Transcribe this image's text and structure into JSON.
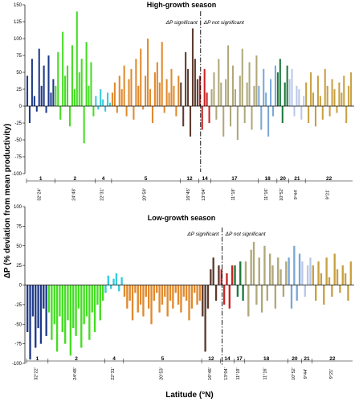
{
  "chart_data": [
    {
      "type": "bar",
      "title": "High-growth season",
      "ylim": [
        -100,
        150
      ],
      "yticks": [
        -100,
        -75,
        -50,
        -25,
        0,
        25,
        50,
        75,
        100,
        125,
        150
      ],
      "annotations": [
        "ΔP significant",
        "ΔP not significant"
      ],
      "groups": [
        "1",
        "2",
        "4",
        "5",
        "12",
        "14",
        "17",
        "18",
        "20",
        "21",
        "22"
      ],
      "latitudes": [
        "32°24'",
        "24°48'",
        "22°31'",
        "20°59'",
        "16°45'",
        "13°04'",
        "11°18'",
        "11°16'",
        "10°52'",
        "9°44'",
        "9°21'"
      ],
      "series": [
        {
          "color": "#1f3a8a",
          "values": [
            45,
            -25,
            70,
            15,
            -8,
            85,
            30,
            60,
            -10,
            75,
            20,
            40
          ]
        },
        {
          "color": "#44dd22",
          "values": [
            30,
            80,
            -20,
            110,
            45,
            60,
            -30,
            90,
            25,
            140,
            50,
            70,
            -55,
            95,
            30,
            65,
            -15
          ]
        },
        {
          "color": "#33ccdd",
          "values": [
            15,
            -5,
            25,
            10,
            -8,
            20,
            5
          ]
        },
        {
          "color": "#e08a2e",
          "values": [
            20,
            35,
            -10,
            45,
            25,
            60,
            -15,
            40,
            55,
            -20,
            70,
            30,
            85,
            -5,
            45,
            100,
            25,
            -25,
            50,
            65,
            35,
            95,
            -10,
            40,
            20,
            55,
            30,
            -15,
            45
          ]
        },
        {
          "color": "#5c3a2e",
          "values": [
            35,
            -30,
            80,
            55,
            -45,
            115,
            70,
            40
          ]
        },
        {
          "color": "#cc2222",
          "values": [
            45,
            -35,
            55,
            20,
            -25
          ]
        },
        {
          "color": "#b0a87a",
          "values": [
            25,
            50,
            -20,
            70,
            35,
            -45,
            40,
            90,
            -30,
            60,
            25,
            -50,
            45,
            85,
            -25,
            35,
            65,
            -35,
            30,
            75
          ]
        },
        {
          "color": "#7aa8d8",
          "values": [
            30,
            -35,
            55,
            20,
            -45,
            40,
            -15,
            60
          ]
        },
        {
          "color": "#1a7a3a",
          "values": [
            50,
            70,
            -25,
            35,
            60
          ]
        },
        {
          "color": "#b8c8e8",
          "values": [
            40,
            55,
            -15,
            30,
            25,
            -20,
            15
          ]
        },
        {
          "color": "#c8a040",
          "values": [
            35,
            -25,
            50,
            20,
            -30,
            45,
            15,
            -20,
            55,
            30,
            -15,
            40,
            25,
            -10,
            35,
            20,
            45,
            -25,
            30,
            50
          ]
        }
      ]
    },
    {
      "type": "bar",
      "title": "Low-growth season",
      "ylim": [
        -100,
        100
      ],
      "yticks": [
        -100,
        -75,
        -50,
        -25,
        0,
        25,
        50,
        75,
        100
      ],
      "annotations": [
        "ΔP significant",
        "ΔP not significant"
      ],
      "groups": [
        "1",
        "2",
        "4",
        "5",
        "12",
        "14",
        "17",
        "18",
        "20",
        "21",
        "22"
      ],
      "latitudes": [
        "32°22'",
        "24°48'",
        "22°31'",
        "20°53'",
        "16°46'",
        "13°04'",
        "11°19'",
        "11°16'",
        "10°52'",
        "9°44'",
        "9°21'"
      ],
      "series": [
        {
          "color": "#1f3a8a",
          "values": [
            -60,
            -95,
            -40,
            -80,
            -55,
            -75,
            -30,
            -65
          ]
        },
        {
          "color": "#44dd22",
          "values": [
            -35,
            -70,
            -50,
            -85,
            -40,
            -60,
            -75,
            -45,
            -90,
            -55,
            -65,
            -30,
            -80,
            -50,
            -40,
            -70,
            -35,
            -60,
            -25,
            -45,
            -20
          ]
        },
        {
          "color": "#33ccdd",
          "values": [
            -10,
            12,
            -5,
            8,
            15,
            -8,
            10
          ]
        },
        {
          "color": "#e08a2e",
          "values": [
            -15,
            -30,
            -20,
            -45,
            -10,
            -35,
            -25,
            -40,
            -15,
            -30,
            -50,
            -20,
            -10,
            -35,
            -25,
            -15,
            -40,
            -20,
            -30,
            -10,
            -25,
            -35,
            -15,
            -20,
            -45,
            -30,
            -10,
            -25,
            -20
          ]
        },
        {
          "color": "#5c3a2e",
          "values": [
            -40,
            -85,
            -30,
            20,
            35,
            -20,
            25
          ]
        },
        {
          "color": "#cc2222",
          "values": [
            20,
            -25,
            15,
            -30,
            25
          ]
        },
        {
          "color": "#1a7a3a",
          "values": [
            25,
            -15,
            30,
            -20
          ]
        },
        {
          "color": "#b0a87a",
          "values": [
            30,
            -40,
            45,
            55,
            -25,
            35,
            -35,
            50,
            -20,
            40,
            25,
            -30,
            35,
            20,
            -15,
            30
          ]
        },
        {
          "color": "#7aa8d8",
          "values": [
            35,
            -30,
            50,
            -20,
            40
          ]
        },
        {
          "color": "#b8c8e8",
          "values": [
            30,
            -15,
            25,
            35
          ]
        },
        {
          "color": "#c8a040",
          "values": [
            25,
            -20,
            30,
            15,
            -25,
            35,
            10,
            -15,
            40,
            20,
            -10,
            25,
            15,
            -20,
            30
          ]
        }
      ]
    }
  ],
  "ylabel": "ΔP (% deviation from mean productivity)",
  "xlabel": "Latitude (°N)"
}
